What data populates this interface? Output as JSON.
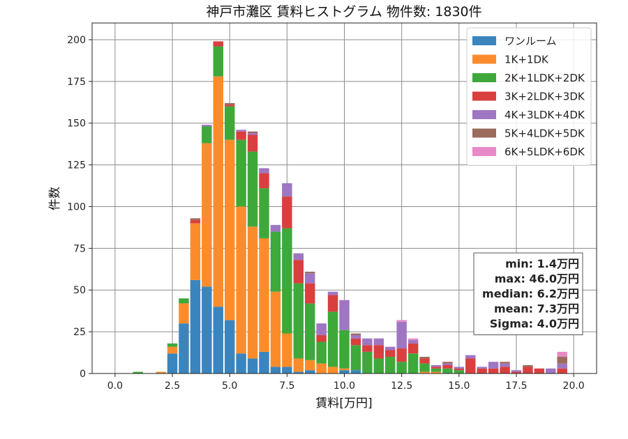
{
  "chart_data": {
    "type": "bar",
    "stacked": true,
    "title": "神戸市灘区 賃料ヒストグラム 物件数: 1830件",
    "xlabel": "賃料[万円]",
    "ylabel": "件数",
    "xlim": [
      -1,
      21
    ],
    "ylim": [
      0,
      210
    ],
    "xticks": [
      "0.0",
      "2.5",
      "5.0",
      "7.5",
      "10.0",
      "12.5",
      "15.0",
      "17.5",
      "20.0"
    ],
    "yticks": [
      "0",
      "25",
      "50",
      "75",
      "100",
      "125",
      "150",
      "175",
      "200"
    ],
    "grid": true,
    "legend_position": "top-right",
    "bin_width": 0.5,
    "x": [
      1.0,
      2.0,
      2.5,
      3.0,
      3.5,
      4.0,
      4.5,
      5.0,
      5.5,
      6.0,
      6.5,
      7.0,
      7.5,
      8.0,
      8.5,
      9.0,
      9.5,
      10.0,
      10.5,
      11.0,
      11.5,
      12.0,
      12.5,
      13.0,
      13.5,
      14.0,
      14.5,
      15.0,
      15.5,
      16.0,
      16.5,
      17.0,
      17.5,
      18.0,
      18.5,
      19.0,
      19.5
    ],
    "series": [
      {
        "name": "ワンルーム",
        "color": "#3a85be",
        "values": [
          0,
          0,
          12,
          30,
          56,
          52,
          40,
          32,
          12,
          9,
          13,
          4,
          4,
          1,
          2,
          0,
          0,
          2,
          2,
          0,
          0,
          0,
          0,
          0,
          0,
          0,
          0,
          0,
          0,
          0,
          0,
          0,
          0,
          0,
          0,
          0,
          0
        ]
      },
      {
        "name": "1K+1DK",
        "color": "#fc8c2b",
        "values": [
          0,
          1,
          4,
          12,
          34,
          86,
          138,
          108,
          88,
          79,
          68,
          45,
          20,
          8,
          6,
          6,
          4,
          1,
          0,
          0,
          0,
          0,
          0,
          0,
          1,
          1,
          0,
          0,
          0,
          0,
          0,
          0,
          0,
          0,
          0,
          0,
          0
        ]
      },
      {
        "name": "2K+1LDK+2DK",
        "color": "#3ea83b",
        "values": [
          1,
          0,
          2,
          3,
          0,
          10,
          18,
          20,
          40,
          45,
          30,
          36,
          63,
          45,
          34,
          13,
          33,
          23,
          15,
          13,
          9,
          10,
          7,
          12,
          5,
          2,
          3,
          2,
          0,
          0,
          0,
          0,
          0,
          0,
          0,
          0,
          0
        ]
      },
      {
        "name": "3K+2LDK+3DK",
        "color": "#d93f3e",
        "values": [
          0,
          0,
          0,
          0,
          2,
          0,
          3,
          1,
          5,
          10,
          9,
          0,
          19,
          14,
          12,
          4,
          10,
          0,
          4,
          4,
          8,
          4,
          8,
          6,
          3,
          1,
          2,
          1,
          9,
          3,
          3,
          4,
          1,
          4,
          3,
          0,
          3
        ]
      },
      {
        "name": "4K+3LDK+4DK",
        "color": "#9e76c2",
        "values": [
          0,
          0,
          0,
          0,
          0,
          1,
          0,
          0,
          1,
          1,
          3,
          4,
          8,
          4,
          6,
          7,
          2,
          18,
          2,
          4,
          4,
          2,
          16,
          2,
          0,
          1,
          1,
          1,
          2,
          1,
          4,
          2,
          1,
          0,
          0,
          3,
          3
        ]
      },
      {
        "name": "5K+4LDK+5DK",
        "color": "#9b6b5c",
        "values": [
          0,
          0,
          0,
          0,
          1,
          0,
          0,
          1,
          0,
          1,
          0,
          0,
          0,
          0,
          1,
          0,
          0,
          0,
          1,
          0,
          0,
          0,
          0,
          0,
          1,
          0,
          1,
          0,
          0,
          0,
          0,
          1,
          0,
          1,
          0,
          0,
          4
        ]
      },
      {
        "name": "6K+5LDK+6DK",
        "color": "#e88ac7",
        "values": [
          0,
          0,
          0,
          0,
          0,
          0,
          0,
          0,
          0,
          0,
          0,
          0,
          0,
          0,
          0,
          0,
          0,
          0,
          0,
          0,
          0,
          0,
          1,
          1,
          0,
          0,
          0,
          0,
          0,
          0,
          0,
          0,
          0,
          0,
          0,
          0,
          3
        ]
      }
    ],
    "stats": [
      "min: 1.4万円",
      "max: 46.0万円",
      "median: 6.2万円",
      "mean: 7.3万円",
      "Sigma: 4.0万円"
    ]
  }
}
